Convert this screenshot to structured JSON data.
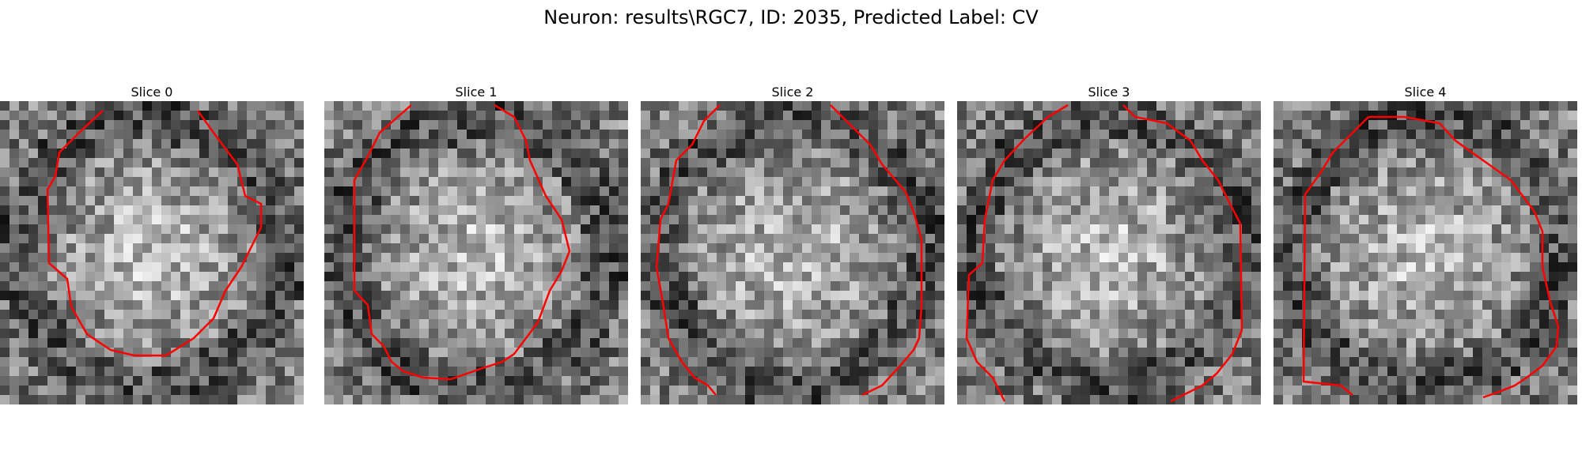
{
  "figure": {
    "title": "Neuron: results\\RGC7, ID: 2035, Predicted Label: CV"
  },
  "colors": {
    "contour": "#ff0000",
    "background": "#ffffff"
  },
  "panels": [
    {
      "title": "Slice 0"
    },
    {
      "title": "Slice 1"
    },
    {
      "title": "Slice 2"
    },
    {
      "title": "Slice 3"
    },
    {
      "title": "Slice 4"
    }
  ]
}
